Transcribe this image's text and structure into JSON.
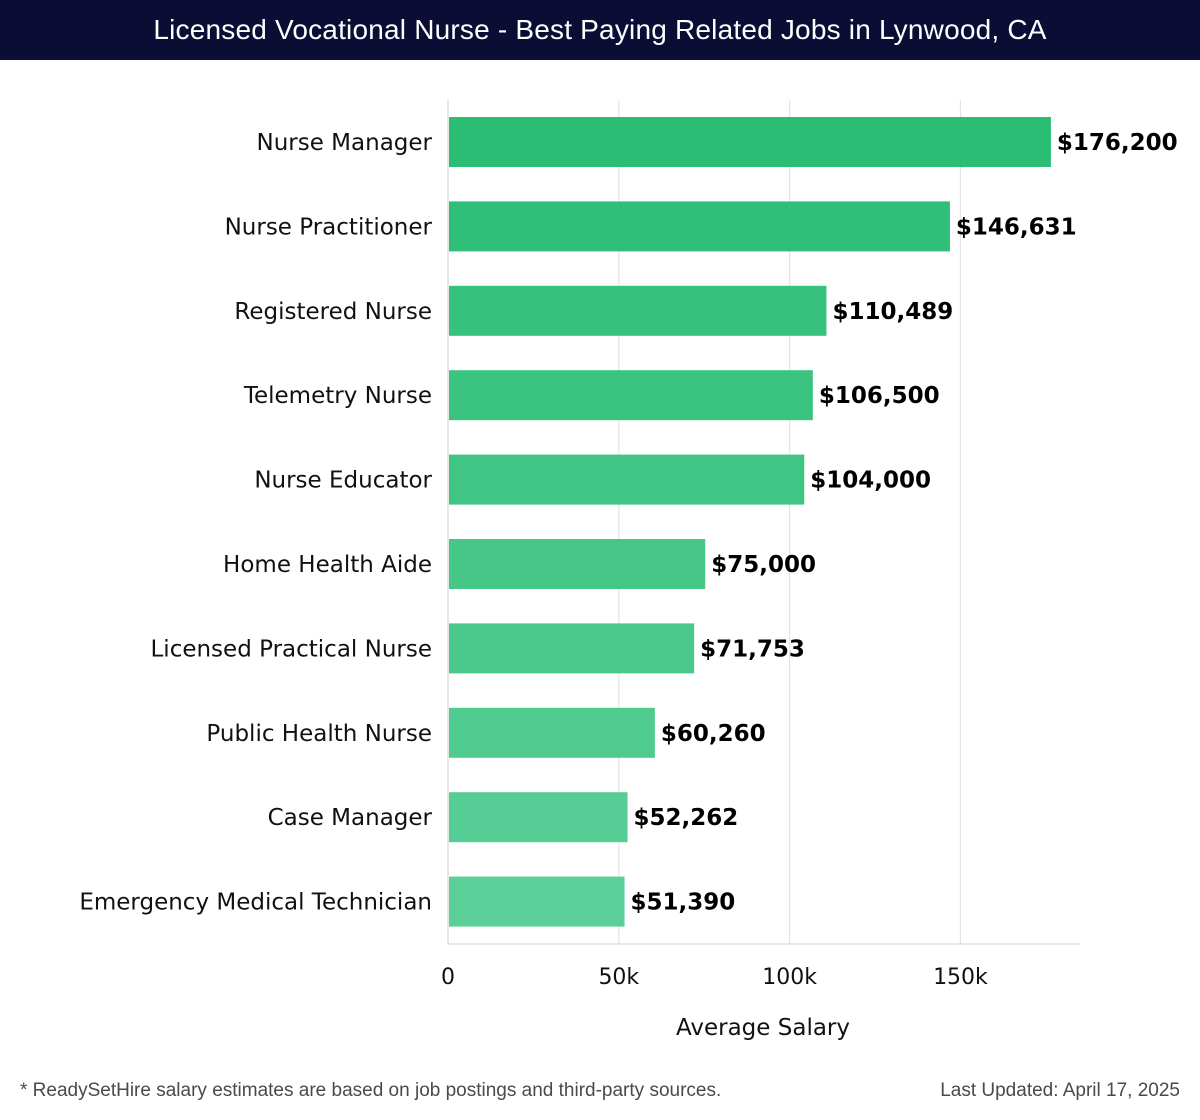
{
  "header": {
    "title": "Licensed Vocational Nurse - Best Paying Related Jobs in Lynwood, CA"
  },
  "chart_data": {
    "type": "bar",
    "orientation": "horizontal",
    "categories": [
      "Nurse Manager",
      "Nurse Practitioner",
      "Registered Nurse",
      "Telemetry Nurse",
      "Nurse Educator",
      "Home Health Aide",
      "Licensed Practical Nurse",
      "Public Health Nurse",
      "Case Manager",
      "Emergency Medical Technician"
    ],
    "values": [
      176200,
      146631,
      110489,
      106500,
      104000,
      75000,
      71753,
      60260,
      52262,
      51390
    ],
    "value_labels": [
      "$176,200",
      "$146,631",
      "$110,489",
      "$106,500",
      "$104,000",
      "$75,000",
      "$71,753",
      "$60,260",
      "$52,262",
      "$51,390"
    ],
    "xlabel": "Average Salary",
    "ylabel": "",
    "xlim": [
      0,
      185000
    ],
    "xticks": [
      0,
      50000,
      100000,
      150000
    ],
    "xtick_labels": [
      "0",
      "50k",
      "100k",
      "150k"
    ],
    "grid": true,
    "bar_color_start": "#2bbd74",
    "bar_color_end": "#5bcf98",
    "label_color": "#000000",
    "grid_color": "#e3e3e3"
  },
  "footer": {
    "note": "* ReadySetHire salary estimates are based on job postings and third-party sources.",
    "updated": "Last Updated: April 17, 2025"
  }
}
